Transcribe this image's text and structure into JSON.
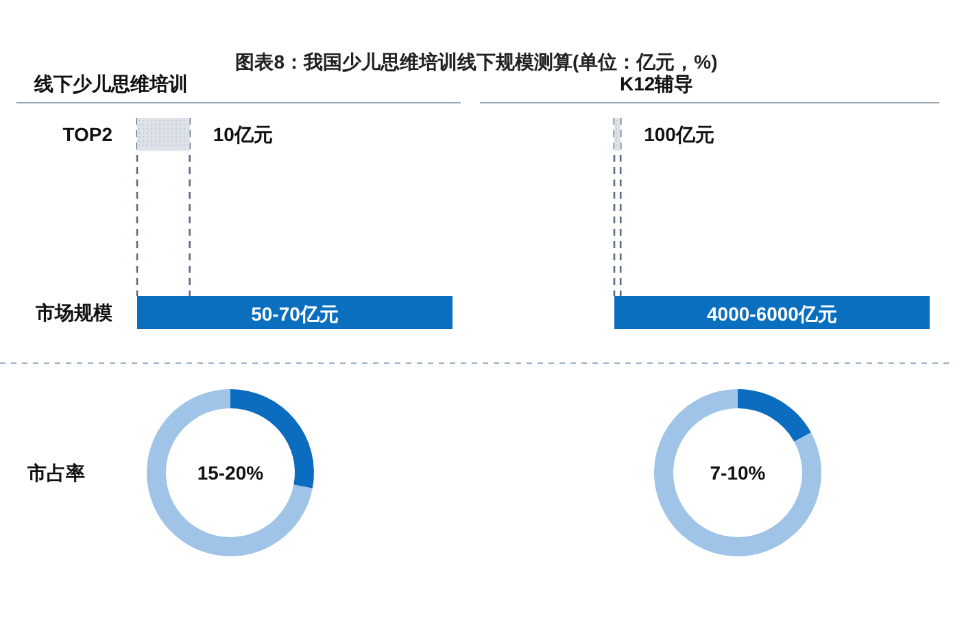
{
  "chart_data": [
    {
      "type": "other",
      "title": "图表8：我国少儿思维培训线下规模测算(单位：亿元，%)"
    },
    {
      "type": "bar",
      "orientation": "horizontal",
      "title": "线下少儿思维培训",
      "categories": [
        "TOP2",
        "市场规模"
      ],
      "values": [
        10,
        60
      ],
      "colors": [
        "#dde2e8",
        "#0b6fc0"
      ],
      "value_labels": [
        "10亿元",
        "50-70亿元"
      ]
    },
    {
      "type": "bar",
      "orientation": "horizontal",
      "title": "K12辅导",
      "categories": [
        null,
        null
      ],
      "values": [
        100,
        5000
      ],
      "colors": [
        "#dde2e8",
        "#0b6fc0"
      ],
      "value_labels": [
        "100亿元",
        "4000-6000亿元"
      ]
    },
    {
      "type": "donut",
      "ylabel": "市占率",
      "categories": [
        null,
        null
      ],
      "values": [
        28,
        72
      ],
      "colors": [
        "#0b6cc0",
        "#a0c4e8"
      ],
      "annotations": [
        "15-20%"
      ]
    },
    {
      "type": "donut",
      "categories": [
        null,
        null
      ],
      "values": [
        17,
        83
      ],
      "colors": [
        "#0b6cc0",
        "#a0c4e8"
      ],
      "annotations": [
        "7-10%"
      ]
    }
  ]
}
